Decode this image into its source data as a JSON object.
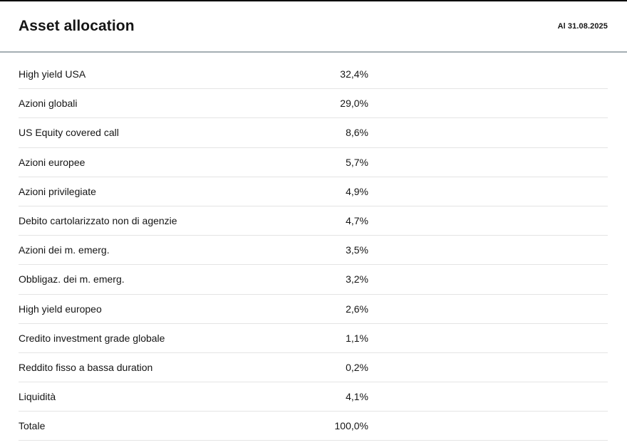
{
  "header": {
    "title": "Asset allocation",
    "as_of_label": "Al 31.08.2025"
  },
  "table": {
    "rows": [
      {
        "label": "High yield USA",
        "value": "32,4%"
      },
      {
        "label": "Azioni globali",
        "value": "29,0%"
      },
      {
        "label": "US Equity covered call",
        "value": "8,6%"
      },
      {
        "label": "Azioni europee",
        "value": "5,7%"
      },
      {
        "label": "Azioni privilegiate",
        "value": "4,9%"
      },
      {
        "label": "Debito cartolarizzato non di agenzie",
        "value": "4,7%"
      },
      {
        "label": "Azioni dei m. emerg.",
        "value": "3,5%"
      },
      {
        "label": "Obbligaz. dei m. emerg.",
        "value": "3,2%"
      },
      {
        "label": "High yield europeo",
        "value": "2,6%"
      },
      {
        "label": "Credito investment grade globale",
        "value": "1,1%"
      },
      {
        "label": "Reddito fisso a bassa duration",
        "value": "0,2%"
      },
      {
        "label": "Liquidità",
        "value": "4,1%"
      }
    ],
    "total": {
      "label": "Totale",
      "value": "100,0%"
    }
  },
  "chart_data": {
    "type": "table",
    "title": "Asset allocation",
    "as_of": "31.08.2025",
    "categories": [
      "High yield USA",
      "Azioni globali",
      "US Equity covered call",
      "Azioni europee",
      "Azioni privilegiate",
      "Debito cartolarizzato non di agenzie",
      "Azioni dei m. emerg.",
      "Obbligaz. dei m. emerg.",
      "High yield europeo",
      "Credito investment grade globale",
      "Reddito fisso a bassa duration",
      "Liquidità"
    ],
    "values": [
      32.4,
      29.0,
      8.6,
      5.7,
      4.9,
      4.7,
      3.5,
      3.2,
      2.6,
      1.1,
      0.2,
      4.1
    ],
    "total": 100.0,
    "unit": "%",
    "decimal_separator": ","
  },
  "colors": {
    "top_border": "#000000",
    "header_rule": "#a4aeb3",
    "row_divider": "#e4e4e4",
    "text": "#151515"
  }
}
